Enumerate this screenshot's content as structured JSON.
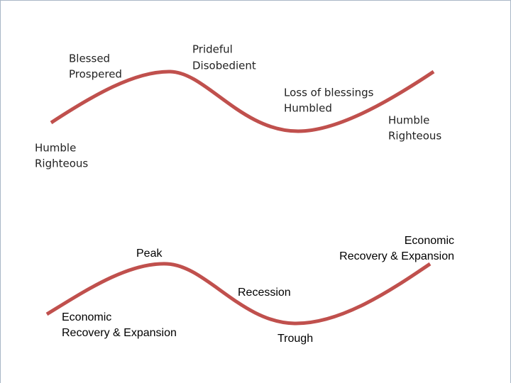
{
  "pride_cycle": {
    "labels": [
      {
        "lines": [
          "Humble",
          "Righteous"
        ]
      },
      {
        "lines": [
          "Blessed",
          "Prospered"
        ]
      },
      {
        "lines": [
          "Prideful",
          "Disobedient"
        ]
      },
      {
        "lines": [
          "Loss of blessings",
          "Humbled"
        ]
      },
      {
        "lines": [
          "Humble",
          "Righteous"
        ]
      }
    ]
  },
  "business_cycle": {
    "labels": [
      {
        "lines": [
          "Economic",
          "Recovery & Expansion"
        ]
      },
      {
        "lines": [
          "Peak"
        ]
      },
      {
        "lines": [
          "Recession"
        ]
      },
      {
        "lines": [
          "Trough"
        ]
      },
      {
        "lines": [
          "Economic",
          "Recovery & Expansion"
        ]
      }
    ]
  }
}
